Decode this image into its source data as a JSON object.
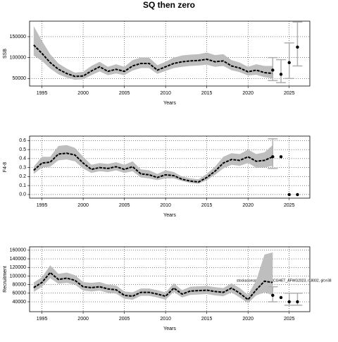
{
  "title": "SQ then zero",
  "annotation": "stockassessment.org/NCGHET_AFWG2023, r18002, git:e38",
  "chart_data": [
    {
      "type": "band-line",
      "xlabel": "Years",
      "ylabel": "SSB",
      "xlim": [
        1993.5,
        2027.5
      ],
      "xticks": [
        1995,
        2000,
        2005,
        2010,
        2015,
        2020,
        2025
      ],
      "ylim": [
        32000,
        187000
      ],
      "yticks": [
        50000,
        100000,
        150000
      ],
      "grid": true,
      "color": "#000000",
      "band_color": "#bebebe",
      "bar_color": "#b0b0b0",
      "x": [
        1994,
        1995,
        1996,
        1997,
        1998,
        1999,
        2000,
        2001,
        2002,
        2003,
        2004,
        2005,
        2006,
        2007,
        2008,
        2009,
        2010,
        2011,
        2012,
        2013,
        2014,
        2015,
        2016,
        2017,
        2018,
        2019,
        2020,
        2021,
        2022,
        2023
      ],
      "values": [
        130000,
        110000,
        88000,
        72000,
        62000,
        55000,
        56000,
        68000,
        78000,
        67000,
        72000,
        67000,
        80000,
        86000,
        86000,
        70000,
        78000,
        86000,
        90000,
        92000,
        93000,
        96000,
        90000,
        92000,
        80000,
        75000,
        66000,
        70000,
        64000,
        62000
      ],
      "lower": [
        105000,
        92000,
        74000,
        60000,
        52000,
        47000,
        48000,
        58000,
        67000,
        58000,
        62000,
        58000,
        69000,
        75000,
        75000,
        61000,
        68000,
        75000,
        78000,
        80000,
        81000,
        83000,
        78000,
        80000,
        70000,
        65000,
        57000,
        59000,
        53000,
        50000
      ],
      "upper": [
        175000,
        140000,
        108000,
        86000,
        74000,
        64000,
        66000,
        80000,
        90000,
        78000,
        84000,
        78000,
        94000,
        100000,
        100000,
        82000,
        90000,
        100000,
        105000,
        107000,
        108000,
        112000,
        106000,
        108000,
        94000,
        88000,
        78000,
        84000,
        80000,
        80000
      ],
      "points": {
        "x": [
          2023,
          2024,
          2025,
          2026
        ],
        "values": [
          70000,
          60000,
          88000,
          125000
        ],
        "lower": [
          45000,
          40000,
          50000,
          80000
        ],
        "upper": [
          100000,
          95000,
          135000,
          185000
        ]
      }
    },
    {
      "type": "band-line",
      "xlabel": "Years",
      "ylabel": "F4-8",
      "xlim": [
        1993.5,
        2027.5
      ],
      "xticks": [
        1995,
        2000,
        2005,
        2010,
        2015,
        2020,
        2025
      ],
      "ylim": [
        -0.04,
        0.65
      ],
      "yticks": [
        {
          "value": 0,
          "label": "0.0"
        },
        0.1,
        0.2,
        0.3,
        0.4,
        0.5,
        0.6
      ],
      "grid": true,
      "color": "#000000",
      "band_color": "#bebebe",
      "bar_color": "#b0b0b0",
      "x": [
        1994,
        1995,
        1996,
        1997,
        1998,
        1999,
        2000,
        2001,
        2002,
        2003,
        2004,
        2005,
        2006,
        2007,
        2008,
        2009,
        2010,
        2011,
        2012,
        2013,
        2014,
        2015,
        2016,
        2017,
        2018,
        2019,
        2020,
        2021,
        2022,
        2023
      ],
      "values": [
        0.27,
        0.35,
        0.36,
        0.45,
        0.46,
        0.44,
        0.35,
        0.28,
        0.3,
        0.29,
        0.31,
        0.28,
        0.31,
        0.23,
        0.22,
        0.19,
        0.22,
        0.21,
        0.17,
        0.15,
        0.14,
        0.19,
        0.26,
        0.35,
        0.39,
        0.38,
        0.42,
        0.37,
        0.38,
        0.42
      ],
      "lower": [
        0.23,
        0.3,
        0.31,
        0.38,
        0.39,
        0.37,
        0.29,
        0.24,
        0.26,
        0.25,
        0.27,
        0.24,
        0.26,
        0.19,
        0.18,
        0.16,
        0.18,
        0.18,
        0.15,
        0.13,
        0.12,
        0.16,
        0.22,
        0.29,
        0.33,
        0.32,
        0.35,
        0.3,
        0.3,
        0.32
      ],
      "upper": [
        0.31,
        0.42,
        0.42,
        0.54,
        0.55,
        0.52,
        0.42,
        0.33,
        0.35,
        0.34,
        0.36,
        0.33,
        0.37,
        0.28,
        0.27,
        0.23,
        0.27,
        0.25,
        0.2,
        0.18,
        0.17,
        0.23,
        0.31,
        0.42,
        0.46,
        0.45,
        0.5,
        0.45,
        0.47,
        0.55
      ],
      "points": {
        "x": [
          2023,
          2024,
          2025,
          2026
        ],
        "values": [
          0.42,
          0.42,
          0,
          0
        ],
        "lower": [
          0.29,
          null,
          null,
          null
        ],
        "upper": [
          0.62,
          null,
          null,
          null
        ]
      }
    },
    {
      "type": "band-line",
      "xlabel": "Years",
      "ylabel": "Recruitment",
      "xlim": [
        1993.5,
        2027.5
      ],
      "xticks": [
        1995,
        2000,
        2005,
        2010,
        2015,
        2020,
        2025
      ],
      "ylim": [
        17000,
        168000
      ],
      "yticks": [
        40000,
        60000,
        80000,
        100000,
        120000,
        140000,
        160000
      ],
      "grid": true,
      "color": "#000000",
      "band_color": "#bebebe",
      "bar_color": "#b0b0b0",
      "x": [
        1994,
        1995,
        1996,
        1997,
        1998,
        1999,
        2000,
        2001,
        2002,
        2003,
        2004,
        2005,
        2006,
        2007,
        2008,
        2009,
        2010,
        2011,
        2012,
        2013,
        2014,
        2015,
        2016,
        2017,
        2018,
        2019,
        2020,
        2021,
        2022,
        2023
      ],
      "values": [
        73000,
        85000,
        108000,
        92000,
        95000,
        90000,
        75000,
        73000,
        75000,
        70000,
        68000,
        55000,
        53000,
        62000,
        62000,
        58000,
        53000,
        72000,
        58000,
        65000,
        66000,
        67000,
        64000,
        62000,
        72000,
        60000,
        45000,
        68000,
        88000,
        85000
      ],
      "lower": [
        63000,
        75000,
        95000,
        82000,
        84000,
        80000,
        66000,
        64000,
        66000,
        61000,
        59000,
        47000,
        45000,
        54000,
        54000,
        50000,
        45000,
        63000,
        50000,
        56000,
        57000,
        58000,
        55000,
        53000,
        62000,
        50000,
        37000,
        55000,
        62000,
        55000
      ],
      "upper": [
        85000,
        97000,
        125000,
        105000,
        108000,
        102000,
        86000,
        84000,
        86000,
        80000,
        78000,
        64000,
        62000,
        71000,
        71000,
        67000,
        62000,
        83000,
        67000,
        75000,
        76000,
        77000,
        74000,
        72000,
        83000,
        72000,
        56000,
        90000,
        150000,
        155000
      ],
      "points": {
        "x": [
          2023,
          2024,
          2025,
          2026
        ],
        "values": [
          55000,
          50000,
          40000,
          40000
        ],
        "lower": [
          40000,
          null,
          32000,
          32000
        ],
        "upper": [
          75000,
          null,
          60000,
          60000
        ]
      }
    }
  ]
}
